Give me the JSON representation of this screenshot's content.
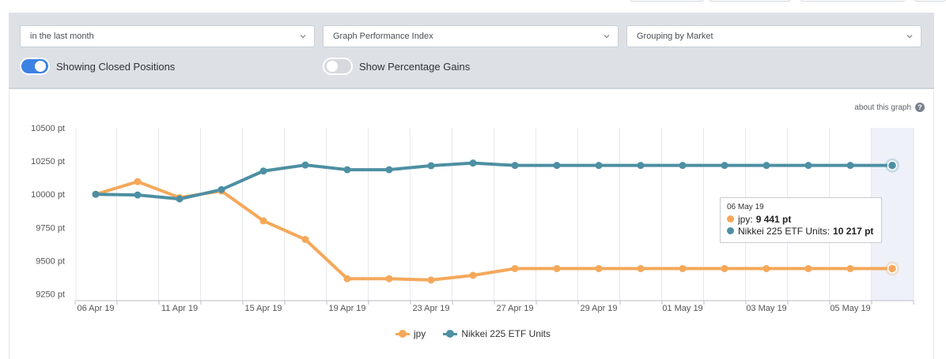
{
  "filters": {
    "period": "in the last month",
    "graph_type": "Graph Performance Index",
    "grouping": "Grouping by Market"
  },
  "toggles": {
    "closed_positions": {
      "label": "Showing Closed Positions",
      "on": true
    },
    "percentage_gains": {
      "label": "Show Percentage Gains",
      "on": false
    }
  },
  "about_link": "about this graph",
  "tooltip": {
    "date": "06 May 19",
    "jpy_label": "jpy:",
    "jpy_value": "9 441 pt",
    "nikkei_label": "Nikkei 225 ETF Units:",
    "nikkei_value": "10 217 pt"
  },
  "colors": {
    "jpy": "#f5a85a",
    "nikkei": "#4d8fa3",
    "accent": "#3b82e4"
  },
  "chart_data": {
    "type": "line",
    "ylim": [
      9200,
      10500
    ],
    "y_ticks": [
      9250,
      9500,
      9750,
      10000,
      10250,
      10500
    ],
    "y_tick_labels": [
      "9250 pt",
      "9500 pt",
      "9750 pt",
      "10000 pt",
      "10250 pt",
      "10500 pt"
    ],
    "x_ticks": [
      "06 Apr 19",
      "11 Apr 19",
      "15 Apr 19",
      "19 Apr 19",
      "23 Apr 19",
      "27 Apr 19",
      "29 Apr 19",
      "01 May 19",
      "03 May 19",
      "05 May 19"
    ],
    "grid": true,
    "legend": "bottom-center",
    "series": [
      {
        "name": "jpy",
        "values": [
          10000,
          10095,
          9975,
          10025,
          9800,
          9660,
          9365,
          9365,
          9355,
          9390,
          9441,
          9441,
          9441,
          9441,
          9441,
          9441,
          9441,
          9441,
          9441,
          9441
        ]
      },
      {
        "name": "Nikkei 225 ETF Units",
        "values": [
          10000,
          9995,
          9965,
          10035,
          10175,
          10220,
          10185,
          10185,
          10215,
          10235,
          10217,
          10217,
          10217,
          10217,
          10217,
          10217,
          10217,
          10217,
          10217,
          10217
        ]
      }
    ]
  }
}
